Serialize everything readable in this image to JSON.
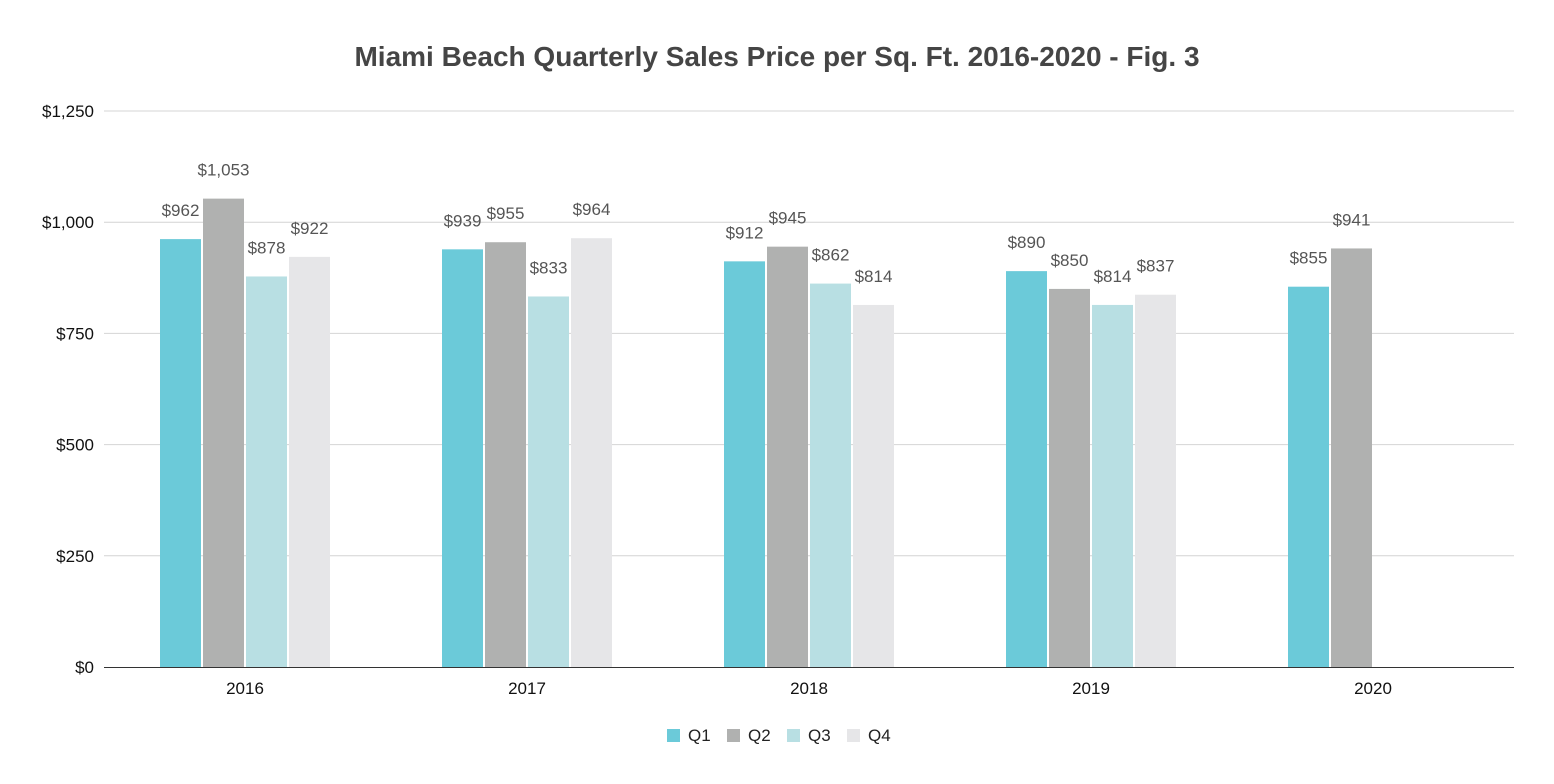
{
  "chart_data": {
    "type": "bar",
    "title": "Miami Beach Quarterly Sales Price per Sq. Ft. 2016-2020 - Fig. 3",
    "xlabel": "",
    "ylabel": "",
    "categories": [
      "2016",
      "2017",
      "2018",
      "2019",
      "2020"
    ],
    "series": [
      {
        "name": "Q1",
        "color": "#6bcad9",
        "values": [
          962,
          939,
          912,
          890,
          855
        ],
        "labels": [
          "$962",
          "$939",
          "$912",
          "$890",
          "$855"
        ]
      },
      {
        "name": "Q2",
        "color": "#b0b1b0",
        "values": [
          1053,
          955,
          945,
          850,
          941
        ],
        "labels": [
          "$1,053",
          "$955",
          "$945",
          "$850",
          "$941"
        ]
      },
      {
        "name": "Q3",
        "color": "#b8dfe3",
        "values": [
          878,
          833,
          862,
          814,
          null
        ],
        "labels": [
          "$878",
          "$833",
          "$862",
          "$814",
          null
        ]
      },
      {
        "name": "Q4",
        "color": "#e6e6e8",
        "values": [
          922,
          964,
          814,
          837,
          null
        ],
        "labels": [
          "$922",
          "$964",
          "$814",
          "$837",
          null
        ]
      }
    ],
    "ylim": [
      0,
      1250
    ],
    "yticks": [
      0,
      250,
      500,
      750,
      1000,
      1250
    ],
    "ytick_labels": [
      "$0",
      "$250",
      "$500",
      "$750",
      "$1,000",
      "$1,250"
    ],
    "grid": true,
    "legend": "bottom-center"
  }
}
